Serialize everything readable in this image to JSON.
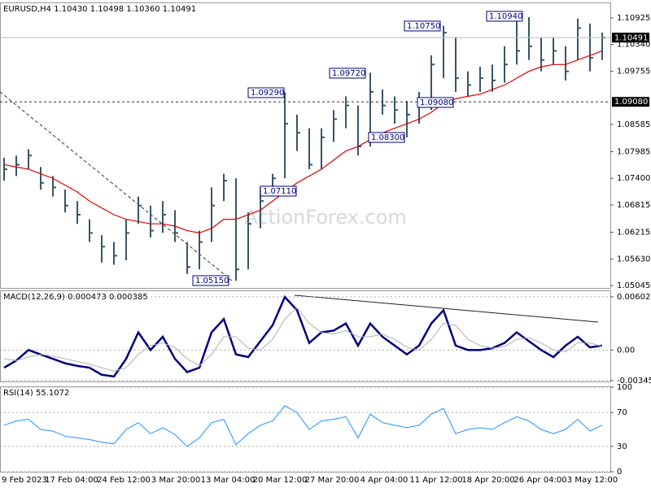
{
  "chart_data": [
    {
      "type": "ohlc",
      "title": "EURUSD,H4 1.10430 1.10498 1.10360 1.10491",
      "watermark": "ActionForex.com",
      "color": "#3a5566",
      "ylim": [
        1.04992,
        1.11246
      ],
      "yticks": [
        1.10925,
        {
          "value": 1.1034,
          "label": "1.10340"
        },
        1.09755,
        1.08585,
        1.07985,
        {
          "value": 1.074,
          "label": "1.07400"
        },
        1.06815,
        1.06215,
        {
          "value": 1.0563,
          "label": "1.05630"
        },
        1.05045
      ],
      "levels": [
        {
          "value": 1.10491,
          "label": "1.10491",
          "style": "solid"
        },
        {
          "value": 1.0908,
          "label": "1.09080",
          "style": "dashed"
        }
      ],
      "annotations": [
        "1.10750",
        "1.10940",
        "1.09720",
        "1.09290",
        "1.09080",
        "1.08300",
        "1.07110",
        "1.05150"
      ],
      "close": [
        1.076,
        1.077,
        1.079,
        1.073,
        1.072,
        1.068,
        1.066,
        1.062,
        1.059,
        1.057,
        1.062,
        1.068,
        1.0625,
        1.066,
        1.062,
        1.0545,
        1.06,
        1.068,
        1.0735,
        1.054,
        1.064,
        1.069,
        1.074,
        1.086,
        1.084,
        1.077,
        1.083,
        1.087,
        1.09,
        1.081,
        1.093,
        1.09,
        1.089,
        1.088,
        1.09,
        1.099,
        1.106,
        1.096,
        1.0945,
        1.096,
        1.0955,
        1.099,
        1.102,
        1.103,
        1.1,
        1.102,
        1.0975,
        1.107,
        1.1005,
        1.1049
      ],
      "high": [
        1.0785,
        1.079,
        1.0804,
        1.0765,
        1.0745,
        1.0715,
        1.069,
        1.065,
        1.0615,
        1.06,
        1.065,
        1.07,
        1.068,
        1.069,
        1.067,
        1.06,
        1.0625,
        1.072,
        1.075,
        1.074,
        1.0665,
        1.072,
        1.075,
        1.0929,
        1.088,
        1.085,
        1.085,
        1.089,
        1.092,
        1.09,
        1.0972,
        1.0935,
        1.092,
        1.091,
        1.093,
        1.101,
        1.1075,
        1.105,
        1.0975,
        1.0985,
        1.099,
        1.103,
        1.1085,
        1.1094,
        1.105,
        1.105,
        1.103,
        1.1091,
        1.108,
        1.106
      ],
      "low": [
        1.0735,
        1.0745,
        1.076,
        1.0715,
        1.07,
        1.0665,
        1.064,
        1.06,
        1.0555,
        1.055,
        1.056,
        1.064,
        1.061,
        1.062,
        1.06,
        1.053,
        1.054,
        1.06,
        1.069,
        1.0515,
        1.054,
        1.063,
        1.07,
        1.074,
        1.08,
        1.076,
        1.076,
        1.082,
        1.085,
        1.079,
        1.081,
        1.088,
        1.086,
        1.083,
        1.086,
        1.089,
        1.096,
        1.093,
        1.092,
        1.093,
        1.093,
        1.095,
        1.099,
        1.1,
        1.0975,
        1.099,
        1.0955,
        1.1,
        1.0975,
        1.1
      ],
      "ma": {
        "color": "#e00000",
        "values": [
          1.077,
          1.0765,
          1.076,
          1.075,
          1.074,
          1.0725,
          1.071,
          1.069,
          1.0675,
          1.066,
          1.065,
          1.0645,
          1.064,
          1.064,
          1.0635,
          1.0625,
          1.062,
          1.063,
          1.065,
          1.065,
          1.066,
          1.067,
          1.069,
          1.071,
          1.073,
          1.0745,
          1.076,
          1.078,
          1.08,
          1.081,
          1.0825,
          1.084,
          1.085,
          1.086,
          1.087,
          1.0885,
          1.0905,
          1.0915,
          1.092,
          1.0925,
          1.0935,
          1.0945,
          1.096,
          1.0975,
          1.0985,
          1.099,
          1.099,
          1.1,
          1.101,
          1.102
        ]
      }
    },
    {
      "type": "line",
      "title": "MACD(12,26,9) 0.000473 0.000385",
      "ylim": [
        -0.00356,
        0.00666
      ],
      "yticks": [
        0.006023,
        {
          "value": 0,
          "label": "0.00"
        },
        -0.003456
      ],
      "grid": true,
      "series": [
        {
          "color": "#000080",
          "values": [
            -0.002,
            -0.0012,
            0,
            -0.0005,
            -0.001,
            -0.0015,
            -0.0018,
            -0.002,
            -0.0028,
            -0.003,
            -0.001,
            0.002,
            0,
            0.0015,
            -0.001,
            -0.0025,
            -0.002,
            0.002,
            0.0035,
            -0.0005,
            -0.0008,
            0.001,
            0.0028,
            0.006,
            0.0045,
            0.0008,
            0.002,
            0.0022,
            0.003,
            0.0005,
            0.003,
            0.0015,
            0.0005,
            -0.0005,
            0.0005,
            0.003,
            0.0045,
            0.0005,
            0,
            0,
            0.0002,
            0.0008,
            0.002,
            0.001,
            0,
            -0.0008,
            0.0005,
            0.0015,
            0.0003,
            0.0005
          ]
        },
        {
          "color": "#b0b0b0",
          "values": [
            -0.001,
            -0.0012,
            -0.0008,
            -0.0005,
            -0.0007,
            -0.001,
            -0.0013,
            -0.0016,
            -0.002,
            -0.0024,
            -0.002,
            -0.0005,
            0.0005,
            0.0008,
            0.0003,
            -0.001,
            -0.0018,
            -0.0005,
            0.0015,
            0.0015,
            0.0002,
            0,
            0.0012,
            0.0035,
            0.0048,
            0.003,
            0.002,
            0.0018,
            0.0022,
            0.0015,
            0.0015,
            0.0018,
            0.0012,
            0.0003,
            0,
            0.0012,
            0.003,
            0.0028,
            0.0012,
            0.0005,
            0.0002,
            0.0004,
            0.0012,
            0.0014,
            0.0008,
            0,
            -0.0002,
            0.0008,
            0.0008,
            0.0004
          ]
        }
      ]
    },
    {
      "type": "line",
      "title": "RSI(14) 55.1072",
      "ylim": [
        0,
        100
      ],
      "yticks": [
        100,
        70,
        30,
        0
      ],
      "grid": true,
      "series": [
        {
          "color": "#1e90ff",
          "values": [
            55,
            60,
            62,
            50,
            48,
            42,
            40,
            38,
            35,
            33,
            50,
            58,
            45,
            52,
            44,
            30,
            40,
            58,
            62,
            32,
            45,
            55,
            60,
            78,
            70,
            50,
            60,
            62,
            65,
            40,
            68,
            58,
            55,
            52,
            55,
            68,
            75,
            45,
            50,
            52,
            50,
            58,
            65,
            60,
            50,
            45,
            50,
            62,
            48,
            55
          ]
        }
      ],
      "x_labels": [
        "9 Feb 2023",
        "17 Feb 04:00",
        "24 Feb 12:00",
        "3 Mar 20:00",
        "13 Mar 04:00",
        "20 Mar 12:00",
        "27 Mar 20:00",
        "4 Apr 04:00",
        "11 Apr 12:00",
        "18 Apr 20:00",
        "26 Apr 04:00",
        "3 May 12:00"
      ]
    }
  ]
}
